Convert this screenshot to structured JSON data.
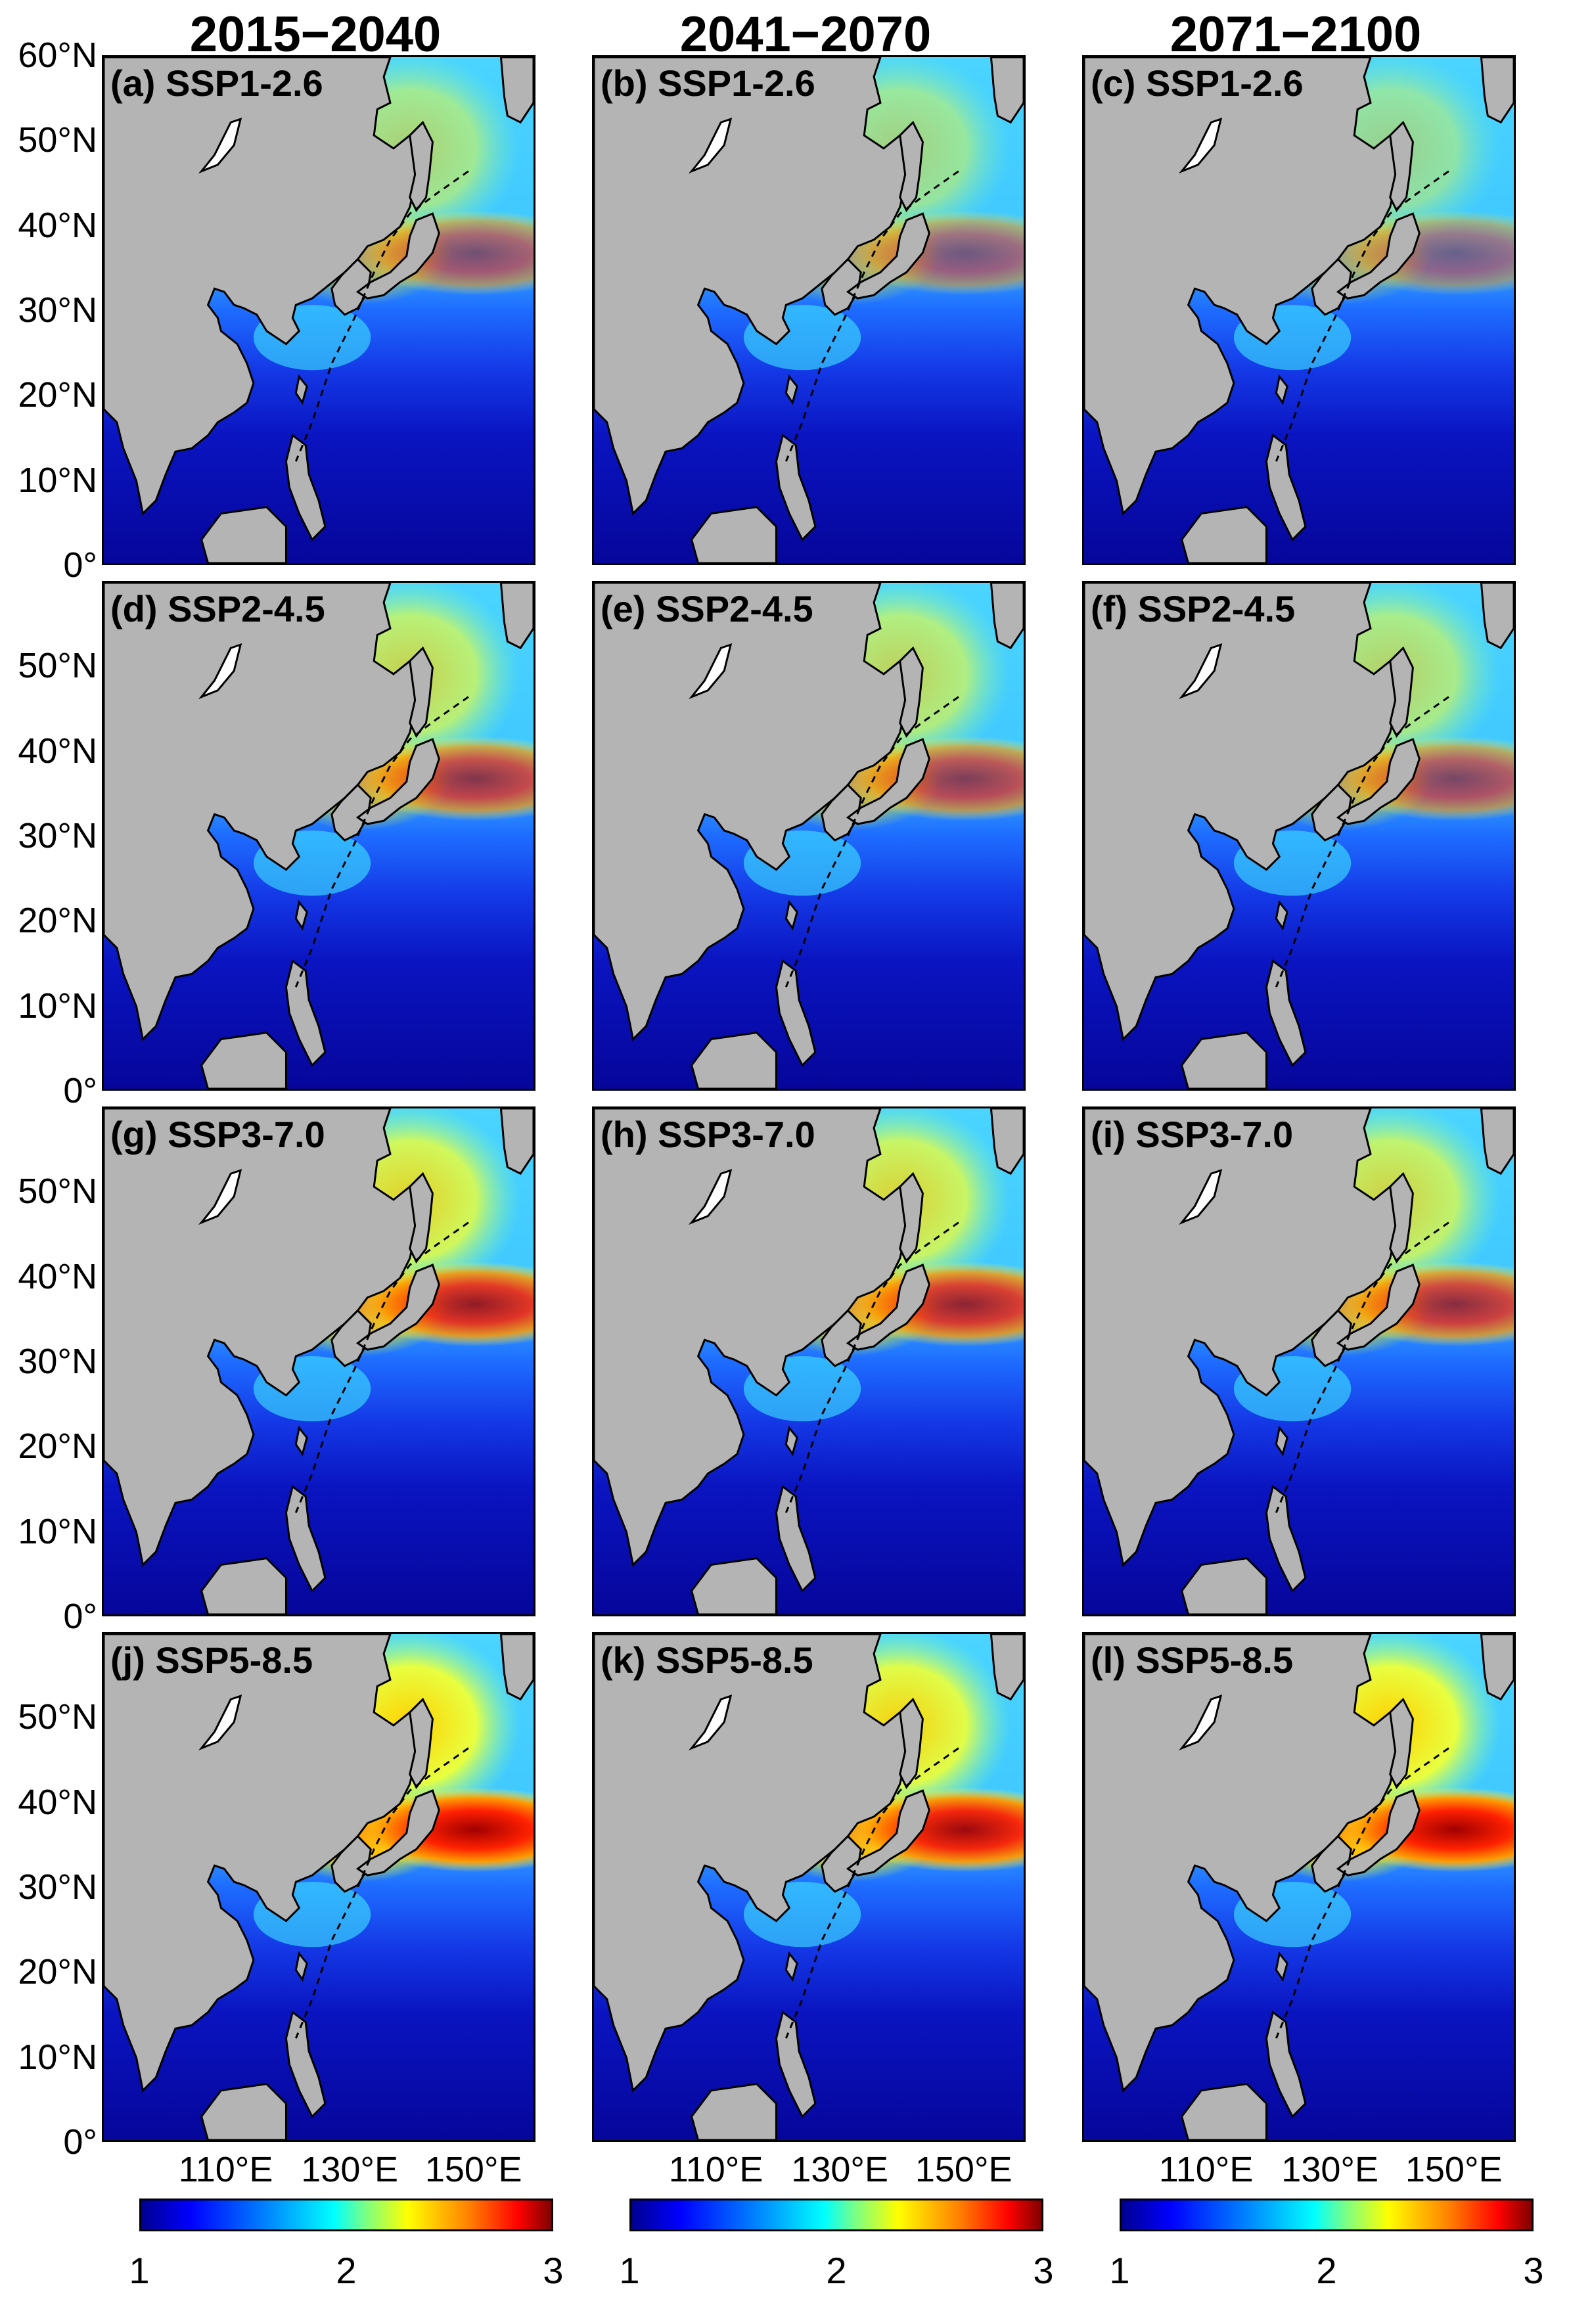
{
  "columns": [
    "2015−2040",
    "2041−2070",
    "2071−2100"
  ],
  "scenarios": [
    "SSP1-2.6",
    "SSP2-4.5",
    "SSP3-7.0",
    "SSP5-8.5"
  ],
  "panels": [
    {
      "label": "(a) SSP1-2.6",
      "period": "2015−2040",
      "scenario": "SSP1-2.6"
    },
    {
      "label": "(b) SSP1-2.6",
      "period": "2041−2070",
      "scenario": "SSP1-2.6"
    },
    {
      "label": "(c) SSP1-2.6",
      "period": "2071−2100",
      "scenario": "SSP1-2.6"
    },
    {
      "label": "(d) SSP2-4.5",
      "period": "2015−2040",
      "scenario": "SSP2-4.5"
    },
    {
      "label": "(e) SSP2-4.5",
      "period": "2041−2070",
      "scenario": "SSP2-4.5"
    },
    {
      "label": "(f) SSP2-4.5",
      "period": "2071−2100",
      "scenario": "SSP2-4.5"
    },
    {
      "label": "(g) SSP3-7.0",
      "period": "2015−2040",
      "scenario": "SSP3-7.0"
    },
    {
      "label": "(h) SSP3-7.0",
      "period": "2041−2070",
      "scenario": "SSP3-7.0"
    },
    {
      "label": "(i) SSP3-7.0",
      "period": "2071−2100",
      "scenario": "SSP3-7.0"
    },
    {
      "label": "(j) SSP5-8.5",
      "period": "2015−2040",
      "scenario": "SSP5-8.5"
    },
    {
      "label": "(k) SSP5-8.5",
      "period": "2041−2070",
      "scenario": "SSP5-8.5"
    },
    {
      "label": "(l) SSP5-8.5",
      "period": "2071−2100",
      "scenario": "SSP5-8.5"
    }
  ],
  "latitude_labels_first_row": [
    "60°N",
    "50°N",
    "40°N",
    "30°N",
    "20°N",
    "10°N",
    "0°"
  ],
  "latitude_labels": [
    "50°N",
    "40°N",
    "30°N",
    "20°N",
    "10°N",
    "0°"
  ],
  "longitude_labels": [
    "110°E",
    "130°E",
    "150°E"
  ],
  "colorbar": {
    "ticks": [
      "1",
      "2",
      "3"
    ],
    "min": 1,
    "max": 3,
    "colormap": "jet",
    "colors": [
      "#00008f",
      "#0000ff",
      "#00ffff",
      "#ffff00",
      "#ff0000",
      "#800000"
    ]
  },
  "land_color": "#b4b4b4"
}
